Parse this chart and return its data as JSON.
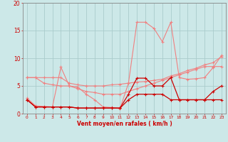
{
  "xlabel": "Vent moyen/en rafales ( km/h )",
  "bg_color": "#cce8e8",
  "grid_color": "#aacccc",
  "x_values": [
    0,
    1,
    2,
    3,
    4,
    5,
    6,
    7,
    8,
    9,
    10,
    11,
    12,
    13,
    14,
    15,
    16,
    17,
    18,
    19,
    20,
    21,
    22,
    23
  ],
  "line_pink1": [
    6.5,
    6.5,
    6.5,
    6.5,
    6.5,
    5.5,
    5.2,
    5.0,
    5.0,
    5.0,
    5.2,
    5.3,
    5.5,
    5.7,
    5.8,
    6.0,
    6.2,
    6.8,
    7.2,
    7.8,
    8.2,
    8.8,
    9.2,
    10.3
  ],
  "line_pink2": [
    2.8,
    1.4,
    1.3,
    1.2,
    8.4,
    5.0,
    4.8,
    3.5,
    2.5,
    1.2,
    1.1,
    0.9,
    5.5,
    16.5,
    16.5,
    15.4,
    13.0,
    16.5,
    6.5,
    6.2,
    6.3,
    6.5,
    8.3,
    10.5
  ],
  "line_pink3": [
    6.5,
    6.5,
    5.5,
    5.2,
    5.0,
    5.0,
    4.5,
    4.0,
    3.8,
    3.5,
    3.5,
    3.5,
    4.0,
    4.5,
    5.0,
    5.5,
    6.0,
    6.5,
    7.0,
    7.5,
    8.0,
    8.5,
    8.5,
    8.5
  ],
  "line_red1": [
    2.5,
    1.2,
    1.2,
    1.2,
    1.2,
    1.2,
    1.0,
    1.0,
    1.0,
    1.0,
    1.0,
    1.0,
    3.5,
    6.4,
    6.4,
    5.0,
    5.0,
    6.5,
    2.5,
    2.5,
    2.5,
    2.5,
    4.0,
    5.0
  ],
  "line_red2": [
    2.5,
    1.2,
    1.2,
    1.2,
    1.2,
    1.2,
    1.0,
    1.0,
    1.0,
    1.0,
    1.0,
    1.0,
    2.5,
    3.5,
    3.5,
    3.5,
    3.5,
    2.5,
    2.5,
    2.5,
    2.5,
    2.5,
    2.5,
    2.5
  ],
  "color_pink": "#f08080",
  "color_red": "#cc0000",
  "ylim": [
    0,
    20
  ],
  "yticks": [
    0,
    5,
    10,
    15,
    20
  ]
}
